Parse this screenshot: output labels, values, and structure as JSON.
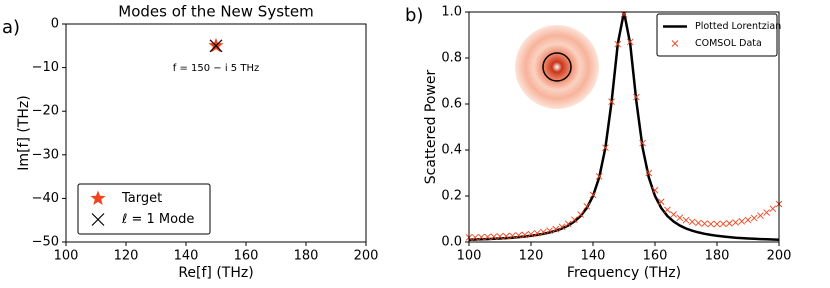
{
  "chart_data": [
    {
      "type": "scatter",
      "label": "a)",
      "title": "Modes of the New System",
      "xlabel": "Re[f] (THz)",
      "ylabel": "Im[f] (THz)",
      "annotation": "f = 150 − i 5 THz",
      "xlim": [
        100,
        200
      ],
      "xticks": [
        100,
        120,
        140,
        160,
        180,
        200
      ],
      "ylim": [
        -50,
        0
      ],
      "yticks": [
        0,
        {
          "value": -10,
          "label": "−10"
        },
        {
          "value": -20,
          "label": "−20"
        },
        {
          "value": -30,
          "label": "−30"
        },
        {
          "value": -40,
          "label": "−40"
        },
        {
          "value": -50,
          "label": "−50"
        }
      ],
      "legend": "lower left",
      "series": [
        {
          "name": "Target",
          "color": "#f0441c",
          "marker": "star",
          "x": [
            150
          ],
          "values": [
            -5
          ]
        },
        {
          "name": "ℓ = 1 Mode",
          "color": "#000000",
          "marker": "x",
          "x": [
            150
          ],
          "values": [
            -5
          ]
        }
      ]
    },
    {
      "type": "line",
      "label": "b)",
      "xlabel": "Frequency (THz)",
      "ylabel": "Scattered Power",
      "xlim": [
        100,
        200
      ],
      "xticks": [
        100,
        120,
        140,
        160,
        180,
        200
      ],
      "ylim": [
        0,
        1
      ],
      "yticks": [
        {
          "value": 0,
          "label": "0.0"
        },
        0.2,
        0.4,
        0.6,
        0.8,
        {
          "value": 1,
          "label": "1.0"
        }
      ],
      "legend": "upper right",
      "x": [
        100,
        102,
        104,
        106,
        108,
        110,
        112,
        114,
        116,
        118,
        120,
        122,
        124,
        126,
        128,
        130,
        132,
        134,
        136,
        138,
        140,
        142,
        144,
        146,
        148,
        150,
        152,
        154,
        156,
        158,
        160,
        162,
        164,
        166,
        168,
        170,
        172,
        174,
        176,
        178,
        180,
        182,
        184,
        186,
        188,
        190,
        192,
        194,
        196,
        198,
        200
      ],
      "series": [
        {
          "name": "Plotted Lorentzian",
          "color": "#000000",
          "marker": "line",
          "values": [
            0.0099,
            0.0107,
            0.0117,
            0.0127,
            0.014,
            0.0154,
            0.017,
            0.0189,
            0.0212,
            0.0238,
            0.027,
            0.0309,
            0.0357,
            0.0416,
            0.0491,
            0.0588,
            0.0716,
            0.089,
            0.1131,
            0.1479,
            0.2,
            0.2809,
            0.4098,
            0.6098,
            0.8621,
            1,
            0.8621,
            0.6098,
            0.4098,
            0.2809,
            0.2,
            0.1479,
            0.1131,
            0.089,
            0.0716,
            0.0588,
            0.0491,
            0.0416,
            0.0357,
            0.0309,
            0.027,
            0.0238,
            0.0212,
            0.0189,
            0.017,
            0.0154,
            0.014,
            0.0127,
            0.0117,
            0.0107,
            0.0099
          ]
        },
        {
          "name": "COMSOL Data",
          "color": "#f0441c",
          "marker": "x",
          "values": [
            0.02,
            0.02,
            0.021,
            0.022,
            0.023,
            0.024,
            0.025,
            0.027,
            0.029,
            0.031,
            0.034,
            0.038,
            0.043,
            0.049,
            0.056,
            0.066,
            0.079,
            0.097,
            0.12,
            0.155,
            0.205,
            0.285,
            0.41,
            0.61,
            0.86,
            0.99,
            0.87,
            0.63,
            0.43,
            0.3,
            0.225,
            0.175,
            0.14,
            0.12,
            0.105,
            0.095,
            0.088,
            0.083,
            0.08,
            0.078,
            0.078,
            0.079,
            0.081,
            0.085,
            0.09,
            0.096,
            0.104,
            0.115,
            0.128,
            0.145,
            0.165
          ]
        }
      ]
    }
  ]
}
